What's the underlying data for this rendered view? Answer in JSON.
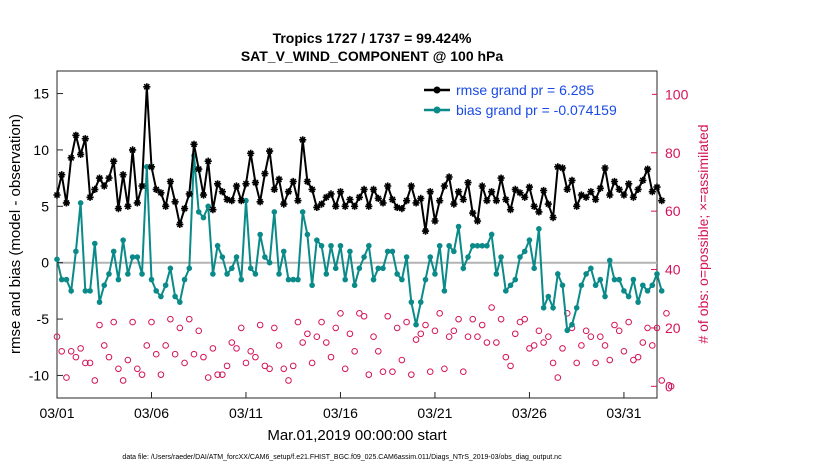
{
  "colors": {
    "rmse": "#000000",
    "bias": "#0a8a88",
    "obs": "#d4145a",
    "zero_line": "#b4b4b4",
    "legend_text": "#1a4ae6"
  },
  "chart_data": {
    "type": "line",
    "title_line1": "Tropics 1727 / 1737 = 99.424%",
    "title_line2": "SAT_V_WIND_COMPONENT @ 100 hPa",
    "ylabel_left": "rmse and bias (model - observation)",
    "ylabel_right": "# of obs: o=possible; ×=assimilated",
    "xlabel": "Mar.01,2019 00:00:00 start",
    "footnote": "data file: /Users/raeder/DAI/ATM_forcXX/CAM6_setup/f.e21.FHIST_BGC.f09_025.CAM6assim.011/Diags_NTrS_2019-03/obs_diag_output.nc",
    "x_range": [
      0,
      31.75
    ],
    "y_left_range": [
      -12,
      17
    ],
    "y_right_range": [
      -4,
      108
    ],
    "x_ticks": [
      {
        "value": 0,
        "label": "03/01"
      },
      {
        "value": 5,
        "label": "03/06"
      },
      {
        "value": 10,
        "label": "03/11"
      },
      {
        "value": 15,
        "label": "03/16"
      },
      {
        "value": 20,
        "label": "03/21"
      },
      {
        "value": 25,
        "label": "03/26"
      },
      {
        "value": 30,
        "label": "03/31"
      }
    ],
    "y_left_ticks": [
      -10,
      -5,
      0,
      5,
      10,
      15
    ],
    "y_right_ticks": [
      0,
      20,
      40,
      60,
      80,
      100
    ],
    "legend": [
      {
        "name": "rmse",
        "label": "rmse grand pr = 6.285"
      },
      {
        "name": "bias",
        "label": "bias grand pr = -0.074159"
      }
    ],
    "x_step_days": 0.25,
    "series": [
      {
        "name": "rmse",
        "values": [
          6.0,
          7.8,
          5.3,
          9.3,
          11.3,
          9.6,
          11.0,
          5.8,
          6.5,
          7.5,
          6.8,
          7.5,
          9.0,
          4.8,
          7.8,
          5.0,
          10.0,
          5.3,
          6.8,
          15.6,
          8.5,
          6.5,
          6.2,
          5.0,
          7.2,
          5.4,
          3.4,
          4.8,
          6.1,
          10.5,
          8.3,
          6.0,
          9.0,
          4.7,
          7.0,
          6.3,
          5.6,
          5.5,
          6.8,
          5.5,
          7.0,
          9.7,
          7.1,
          5.4,
          7.9,
          9.9,
          6.5,
          7.4,
          5.2,
          6.3,
          7.2,
          5.5,
          10.9,
          7.2,
          6.5,
          4.9,
          5.2,
          5.8,
          6.1,
          5.0,
          6.3,
          5.0,
          5.6,
          5.0,
          5.8,
          6.5,
          5.0,
          6.5,
          5.7,
          5.3,
          6.8,
          5.6,
          4.9,
          4.8,
          5.5,
          6.8,
          5.3,
          5.7,
          2.8,
          6.3,
          3.7,
          5.5,
          6.8,
          7.6,
          5.2,
          6.3,
          5.6,
          7.1,
          4.4,
          3.7,
          6.8,
          5.5,
          6.3,
          5.5,
          7.5,
          5.6,
          4.7,
          6.5,
          6.2,
          5.8,
          6.7,
          5.0,
          4.5,
          6.4,
          5.2,
          4.0,
          8.5,
          8.4,
          6.5,
          7.3,
          5.0,
          6.0,
          5.8,
          6.3,
          5.6,
          6.6,
          8.4,
          6.0,
          7.2,
          6.5,
          6.0,
          7.0,
          5.8,
          6.5,
          7.3,
          8.3,
          6.3,
          6.7,
          5.5
        ],
        "base_day": 0.0
      },
      {
        "name": "bias",
        "values": [
          0.3,
          -1.5,
          -1.5,
          -2.5,
          1.0,
          5.3,
          -2.5,
          -2.5,
          1.7,
          -3.5,
          -2.0,
          -1.0,
          1.0,
          -1.5,
          2.0,
          -1.0,
          0.5,
          0.5,
          -1.0,
          8.5,
          -1.5,
          -2.5,
          -3.0,
          -2.0,
          -0.5,
          -3.0,
          -3.5,
          -1.5,
          -0.5,
          9.5,
          4.5,
          4.0,
          5.0,
          -1.0,
          1.5,
          0.5,
          -1.0,
          -0.5,
          0.5,
          -1.5,
          5.5,
          -0.5,
          -1.0,
          2.5,
          0.5,
          0.0,
          4.5,
          -1.0,
          1.0,
          -1.5,
          -1.5,
          -1.5,
          4.5,
          2.5,
          -2.0,
          2.0,
          1.5,
          -1.0,
          1.5,
          -0.5,
          1.5,
          -1.5,
          1.0,
          -2.0,
          -0.5,
          0.5,
          1.5,
          -1.5,
          -0.5,
          -0.5,
          1.0,
          1.0,
          -1.0,
          -1.5,
          0.5,
          -3.5,
          -5.5,
          -3.5,
          -1.5,
          0.5,
          -1.0,
          1.5,
          -2.5,
          1.5,
          1.0,
          3.2,
          -0.5,
          0.5,
          1.5,
          1.5,
          1.5,
          1.5,
          2.5,
          -1.0,
          0.5,
          -2.5,
          -2.0,
          -1.5,
          0.5,
          1.0,
          2.0,
          -0.5,
          3.0,
          -4.0,
          -3.0,
          -4.0,
          -1.0,
          -2.0,
          -6.0,
          -5.5,
          -4.0,
          -2.0,
          -1.0,
          -0.5,
          -2.0,
          -1.5,
          -3.0,
          0.2,
          -1.5,
          -1.5,
          -2.5,
          -3.0,
          -1.5,
          -3.5,
          -2.0,
          -2.5,
          -2.0,
          -1.0,
          -2.5
        ],
        "base_day": 0.0
      }
    ],
    "obs_counts": {
      "name": "obs",
      "values": [
        17,
        12,
        3,
        12,
        10,
        13,
        8,
        8,
        2,
        21,
        14,
        10,
        22,
        6,
        2,
        9,
        22,
        6,
        4,
        14,
        22,
        11,
        4,
        14,
        23,
        11,
        20,
        8,
        23,
        11,
        19,
        10,
        3,
        13,
        4,
        4,
        7,
        15,
        13,
        20,
        8,
        12,
        10,
        21,
        7,
        6,
        20,
        14,
        6,
        2,
        7,
        22,
        15,
        18,
        8,
        17,
        22,
        15,
        10,
        20,
        25,
        6,
        18,
        12,
        25,
        24,
        4,
        17,
        12,
        5,
        24,
        5,
        20,
        9,
        22,
        4,
        16,
        18,
        21,
        5,
        19,
        25,
        6,
        17,
        19,
        23,
        5,
        17,
        23,
        17,
        21,
        15,
        27,
        15,
        23,
        10,
        7,
        18,
        22,
        23,
        13,
        14,
        19,
        15,
        17,
        8,
        3,
        13,
        25,
        20,
        8,
        14,
        19,
        17,
        8,
        17,
        14,
        9,
        21,
        19,
        12,
        22,
        9,
        10,
        15,
        20,
        14,
        20,
        2,
        25,
        0
      ],
      "base_day": 0.0
    }
  }
}
